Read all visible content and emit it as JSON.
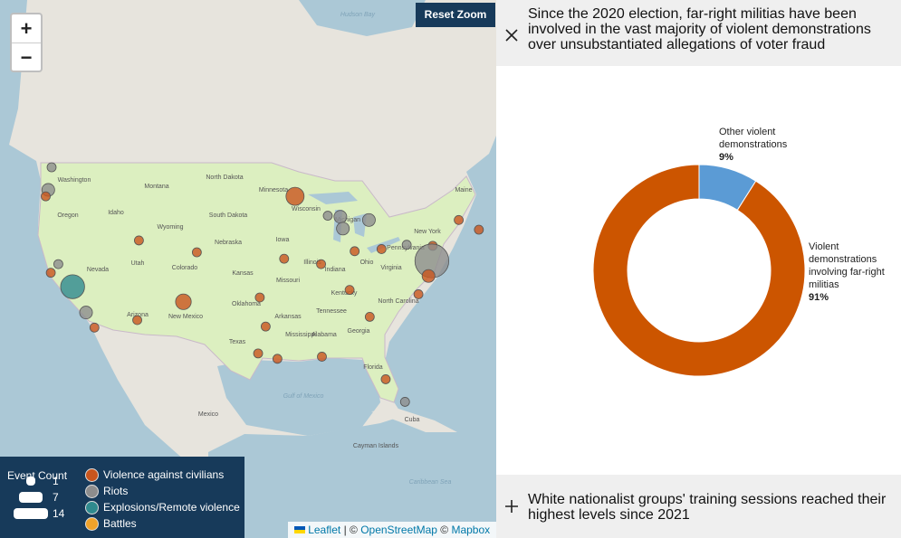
{
  "map": {
    "controls": {
      "zoom_in": "+",
      "zoom_out": "−",
      "reset": "Reset Zoom"
    },
    "labels": [
      "Hudson Bay",
      "Washington",
      "Oregon",
      "Idaho",
      "Montana",
      "Wyoming",
      "Nevada",
      "Utah",
      "Colorado",
      "Arizona",
      "New Mexico",
      "North Dakota",
      "South Dakota",
      "Nebraska",
      "Kansas",
      "Oklahoma",
      "Texas",
      "Minnesota",
      "Iowa",
      "Missouri",
      "Arkansas",
      "Wisconsin",
      "Illinois",
      "Michigan",
      "Indiana",
      "Ohio",
      "Kentucky",
      "Tennessee",
      "Mississippi",
      "Alabama",
      "Georgia",
      "Florida",
      "North Carolina",
      "Virginia",
      "Pennsylvania",
      "New York",
      "Maine",
      "Gulf of Mexico",
      "Mexico",
      "Cuba",
      "Cayman Islands",
      "Caribbean Sea"
    ],
    "categories": [
      {
        "name": "Violence against civilians",
        "color": "#c9551d"
      },
      {
        "name": "Riots",
        "color": "#8d8d8d"
      },
      {
        "name": "Explosions/Remote violence",
        "color": "#2f8a8e"
      },
      {
        "name": "Battles",
        "color": "#f0a22a"
      }
    ],
    "events": [
      {
        "lon": -122.3,
        "lat": 47.6,
        "count": 1,
        "category": 1
      },
      {
        "lon": -122.7,
        "lat": 45.5,
        "count": 2,
        "category": 1
      },
      {
        "lon": -123.0,
        "lat": 44.9,
        "count": 1,
        "category": 0
      },
      {
        "lon": -121.5,
        "lat": 38.6,
        "count": 1,
        "category": 1
      },
      {
        "lon": -122.4,
        "lat": 37.8,
        "count": 1,
        "category": 0
      },
      {
        "lon": -119.8,
        "lat": 36.5,
        "count": 7,
        "category": 2
      },
      {
        "lon": -118.2,
        "lat": 34.1,
        "count": 2,
        "category": 1
      },
      {
        "lon": -117.2,
        "lat": 32.7,
        "count": 1,
        "category": 0
      },
      {
        "lon": -112.1,
        "lat": 33.4,
        "count": 1,
        "category": 0
      },
      {
        "lon": -106.6,
        "lat": 35.1,
        "count": 3,
        "category": 0
      },
      {
        "lon": -105.0,
        "lat": 39.7,
        "count": 1,
        "category": 0
      },
      {
        "lon": -111.9,
        "lat": 40.8,
        "count": 1,
        "category": 0
      },
      {
        "lon": -93.3,
        "lat": 44.9,
        "count": 4,
        "category": 0
      },
      {
        "lon": -87.9,
        "lat": 43.0,
        "count": 2,
        "category": 1
      },
      {
        "lon": -89.4,
        "lat": 43.1,
        "count": 1,
        "category": 1
      },
      {
        "lon": -87.6,
        "lat": 41.9,
        "count": 2,
        "category": 1
      },
      {
        "lon": -84.5,
        "lat": 42.7,
        "count": 2,
        "category": 1
      },
      {
        "lon": -83.0,
        "lat": 40.0,
        "count": 1,
        "category": 0
      },
      {
        "lon": -86.2,
        "lat": 39.8,
        "count": 1,
        "category": 0
      },
      {
        "lon": -80.0,
        "lat": 40.4,
        "count": 1,
        "category": 1
      },
      {
        "lon": -76.9,
        "lat": 40.3,
        "count": 1,
        "category": 0
      },
      {
        "lon": -77.0,
        "lat": 38.9,
        "count": 14,
        "category": 1
      },
      {
        "lon": -77.4,
        "lat": 37.5,
        "count": 2,
        "category": 0
      },
      {
        "lon": -78.6,
        "lat": 35.8,
        "count": 1,
        "category": 0
      },
      {
        "lon": -84.4,
        "lat": 33.7,
        "count": 1,
        "category": 0
      },
      {
        "lon": -86.8,
        "lat": 36.2,
        "count": 1,
        "category": 0
      },
      {
        "lon": -90.2,
        "lat": 38.6,
        "count": 1,
        "category": 0
      },
      {
        "lon": -94.6,
        "lat": 39.1,
        "count": 1,
        "category": 0
      },
      {
        "lon": -97.5,
        "lat": 35.5,
        "count": 1,
        "category": 0
      },
      {
        "lon": -96.8,
        "lat": 32.8,
        "count": 1,
        "category": 0
      },
      {
        "lon": -97.7,
        "lat": 30.3,
        "count": 1,
        "category": 0
      },
      {
        "lon": -95.4,
        "lat": 29.8,
        "count": 1,
        "category": 0
      },
      {
        "lon": -90.1,
        "lat": 30.0,
        "count": 1,
        "category": 0
      },
      {
        "lon": -82.5,
        "lat": 27.9,
        "count": 1,
        "category": 0
      },
      {
        "lon": -80.2,
        "lat": 25.8,
        "count": 1,
        "category": 1
      },
      {
        "lon": -73.8,
        "lat": 42.7,
        "count": 1,
        "category": 0
      },
      {
        "lon": -71.4,
        "lat": 41.8,
        "count": 1,
        "category": 0
      }
    ],
    "legend": {
      "title": "Event Count",
      "sizes": [
        1,
        7,
        14
      ]
    },
    "attribution": {
      "leaflet": "Leaflet",
      "sep": "| ©",
      "osm": "OpenStreetMap",
      "sep2": "©",
      "mapbox": "Mapbox"
    }
  },
  "panel": {
    "items": [
      {
        "title": "Since the 2020 election, far-right militias have been involved in the vast majority of violent demonstrations over unsubstantiated allegations of voter fraud"
      },
      {
        "title": "White nationalist groups' training sessions reached their highest levels since 2021"
      }
    ]
  },
  "chart_data": {
    "type": "pie",
    "donut": true,
    "categories": [
      "Other violent demonstrations",
      "Violent demonstrations involving far-right militias"
    ],
    "values": [
      9,
      91
    ],
    "value_labels": [
      "9%",
      "91%"
    ],
    "colors": [
      "#5b9bd5",
      "#cc5500"
    ]
  }
}
